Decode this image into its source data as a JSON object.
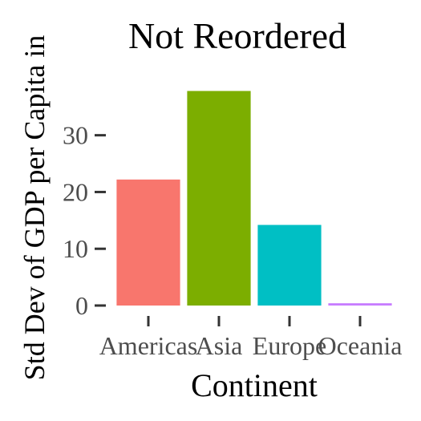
{
  "chart_data": {
    "type": "bar",
    "title": "Not Reordered",
    "xlabel": "Continent",
    "ylabel": "Std Dev of GDP per Capita in",
    "categories": [
      "Americas",
      "Asia",
      "Europe",
      "Oceania"
    ],
    "values": [
      22.2,
      37.8,
      14.2,
      0.4
    ],
    "colors": [
      "#F8766D",
      "#7CAE00",
      "#00BFC4",
      "#C77CFF"
    ],
    "yticks": [
      0,
      10,
      20,
      30
    ],
    "ylim": [
      0,
      39.7
    ],
    "grid": false,
    "legend": "none"
  }
}
